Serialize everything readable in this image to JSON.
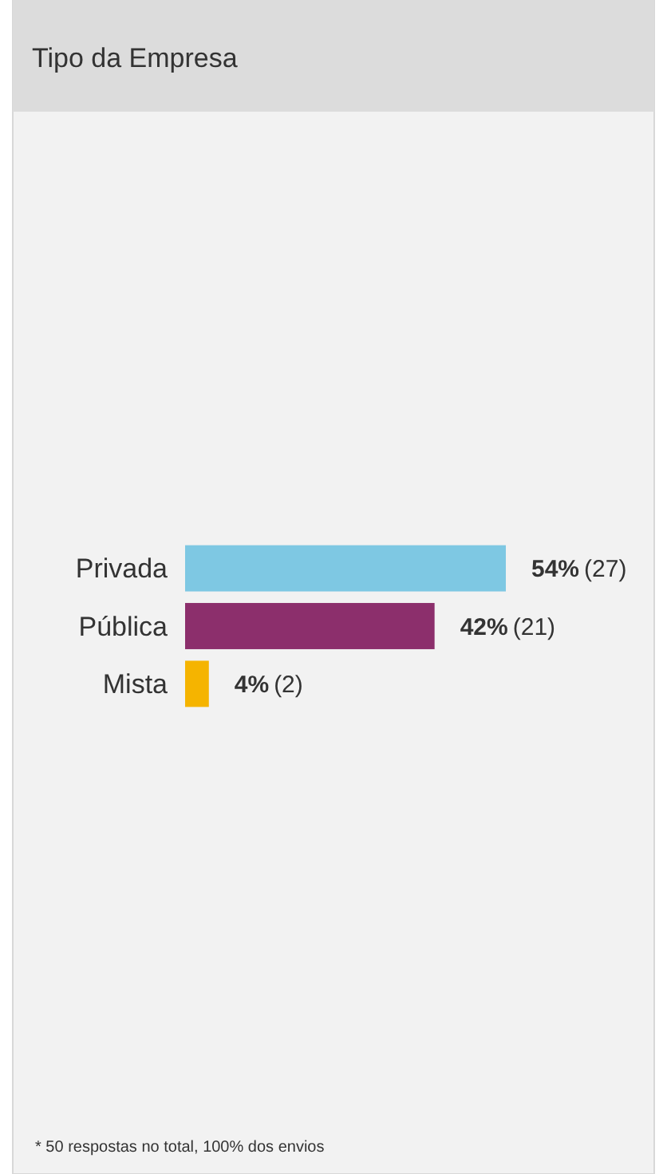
{
  "chart_data": {
    "type": "bar",
    "orientation": "horizontal",
    "title": "Tipo da Empresa",
    "categories": [
      "Privada",
      "Pública",
      "Mista"
    ],
    "values": [
      54,
      42,
      4
    ],
    "colors": [
      "#7ec8e3",
      "#8c2f6c",
      "#f5b400"
    ],
    "value_labels": [
      "54% (27)",
      "42% (21)",
      "4% (2)"
    ],
    "annotations": [
      "* 50 respostas no total, 100% dos envios"
    ]
  }
}
